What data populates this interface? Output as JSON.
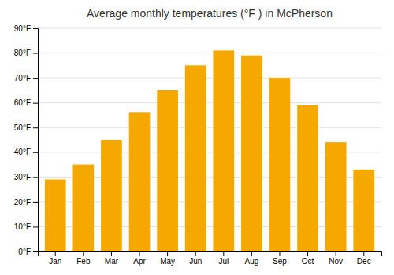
{
  "chart_data": {
    "type": "bar",
    "title": "Average monthly temperatures (°F ) in McPherson",
    "categories": [
      "Jan",
      "Feb",
      "Mar",
      "Apr",
      "May",
      "Jun",
      "Jul",
      "Aug",
      "Sep",
      "Oct",
      "Nov",
      "Dec"
    ],
    "values": [
      29,
      35,
      45,
      56,
      65,
      75,
      81,
      79,
      70,
      59,
      44,
      33
    ],
    "color": "#F5A800",
    "ylim": [
      0,
      90
    ],
    "yticks": [
      {
        "value": 0,
        "label": "0°F"
      },
      {
        "value": 10,
        "label": "10°F"
      },
      {
        "value": 20,
        "label": "20°F"
      },
      {
        "value": 30,
        "label": "30°F"
      },
      {
        "value": 40,
        "label": "40°F"
      },
      {
        "value": 50,
        "label": "50°F"
      },
      {
        "value": 60,
        "label": "60°F"
      },
      {
        "value": 70,
        "label": "70°F"
      },
      {
        "value": 80,
        "label": "80°F"
      },
      {
        "value": 90,
        "label": "90°F"
      }
    ],
    "grid": true
  }
}
